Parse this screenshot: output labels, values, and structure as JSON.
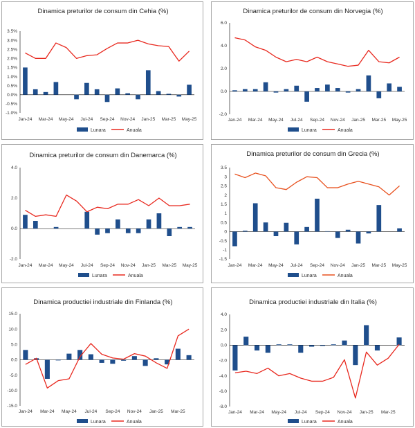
{
  "colors": {
    "bar": "#1f4e8c",
    "line_red": "#e8281e",
    "line_orange": "#e8511e"
  },
  "chart_data": [
    {
      "id": "cz",
      "type": "bar+line",
      "title": "Dinamica preturilor de consum din Cehia (%)",
      "categories": [
        "Jan-24",
        "Feb-24",
        "Mar-24",
        "Apr-24",
        "May-24",
        "Jun-24",
        "Jul-24",
        "Aug-24",
        "Sep-24",
        "Oct-24",
        "Nov-24",
        "Dec-24",
        "Jan-25",
        "Feb-25",
        "Mar-25",
        "Apr-25",
        "May-25"
      ],
      "x_tick_labels": [
        "Jan-24",
        "Mar-24",
        "May-24",
        "Jul-24",
        "Sep-24",
        "Nov-24",
        "Jan-25",
        "Mar-25",
        "May-25"
      ],
      "y_ticks": [
        "-1.0%",
        "-0.5%",
        "0.0%",
        "0.5%",
        "1.0%",
        "1.5%",
        "2.0%",
        "2.5%",
        "3.0%",
        "3.5%"
      ],
      "ylim": [
        -1.0,
        3.5
      ],
      "series": [
        {
          "name": "Lunara",
          "kind": "bar",
          "values": [
            1.5,
            0.3,
            0.15,
            0.7,
            0.0,
            -0.25,
            0.65,
            0.3,
            -0.4,
            0.35,
            0.08,
            -0.25,
            1.35,
            0.2,
            0.05,
            -0.1,
            0.55
          ]
        },
        {
          "name": "Anuala",
          "kind": "line",
          "color_key": "line_red",
          "values": [
            2.3,
            2.0,
            2.0,
            2.85,
            2.6,
            2.0,
            2.15,
            2.2,
            2.55,
            2.85,
            2.85,
            3.0,
            2.8,
            2.7,
            2.65,
            1.85,
            2.4
          ]
        }
      ]
    },
    {
      "id": "no",
      "type": "bar+line",
      "title": "Dinamica preturilor de consum din Norvegia (%)",
      "categories": [
        "Jan-24",
        "Feb-24",
        "Mar-24",
        "Apr-24",
        "May-24",
        "Jun-24",
        "Jul-24",
        "Aug-24",
        "Sep-24",
        "Oct-24",
        "Nov-24",
        "Dec-24",
        "Jan-25",
        "Feb-25",
        "Mar-25",
        "Apr-25",
        "May-25"
      ],
      "x_tick_labels": [
        "Jan-24",
        "Mar-24",
        "May-24",
        "Jul-24",
        "Sep-24",
        "Nov-24",
        "Jan-25",
        "Mar-25",
        "May-25"
      ],
      "y_ticks": [
        "-2.0",
        "0.0",
        "2.0",
        "4.0",
        "6.0"
      ],
      "ylim": [
        -2.0,
        6.0
      ],
      "series": [
        {
          "name": "Lunara",
          "kind": "bar",
          "values": [
            0.1,
            0.2,
            0.2,
            0.8,
            -0.1,
            0.2,
            0.5,
            -0.9,
            0.3,
            0.6,
            0.3,
            -0.1,
            0.2,
            1.4,
            -0.6,
            0.7,
            0.4
          ]
        },
        {
          "name": "Anuala",
          "kind": "line",
          "color_key": "line_red",
          "values": [
            4.7,
            4.5,
            3.9,
            3.6,
            3.0,
            2.6,
            2.8,
            2.6,
            3.0,
            2.6,
            2.4,
            2.2,
            2.3,
            3.6,
            2.6,
            2.5,
            3.0
          ]
        }
      ]
    },
    {
      "id": "dk",
      "type": "bar+line",
      "title": "Dinamica preturilor de consum din Danemarca (%)",
      "categories": [
        "Jan-24",
        "Feb-24",
        "Mar-24",
        "Apr-24",
        "May-24",
        "Jun-24",
        "Jul-24",
        "Aug-24",
        "Sep-24",
        "Oct-24",
        "Nov-24",
        "Dec-24",
        "Jan-25",
        "Feb-25",
        "Mar-25",
        "Apr-25",
        "May-25"
      ],
      "x_tick_labels": [
        "Jan-24",
        "Mar-24",
        "May-24",
        "Jul-24",
        "Sep-24",
        "Nov-24",
        "Jan-25",
        "Mar-25",
        "May-25"
      ],
      "y_ticks": [
        "-2.0",
        "0.0",
        "2.0",
        "4.0"
      ],
      "ylim": [
        -2.0,
        4.0
      ],
      "series": [
        {
          "name": "Lunara",
          "kind": "bar",
          "values": [
            0.9,
            0.5,
            0.0,
            0.1,
            0.0,
            0.0,
            1.1,
            -0.4,
            -0.3,
            0.6,
            -0.3,
            -0.3,
            0.6,
            1.0,
            -0.5,
            0.1,
            0.1
          ]
        },
        {
          "name": "Anuala",
          "kind": "line",
          "color_key": "line_red",
          "values": [
            1.2,
            0.8,
            0.9,
            0.8,
            2.2,
            1.8,
            1.1,
            1.4,
            1.3,
            1.6,
            1.6,
            1.9,
            1.5,
            2.0,
            1.5,
            1.5,
            1.6
          ]
        }
      ]
    },
    {
      "id": "gr",
      "type": "bar+line",
      "title": "Dinamica preturilor de consum din Grecia (%)",
      "categories": [
        "Jan-24",
        "Feb-24",
        "Mar-24",
        "Apr-24",
        "May-24",
        "Jun-24",
        "Jul-24",
        "Aug-24",
        "Sep-24",
        "Oct-24",
        "Nov-24",
        "Dec-24",
        "Jan-25",
        "Feb-25",
        "Mar-25",
        "Apr-25",
        "May-25"
      ],
      "x_tick_labels": [
        "Jan-24",
        "Mar-24",
        "May-24",
        "Jul-24",
        "Sep-24",
        "Nov-24",
        "Jan-25",
        "Mar-25",
        "May-25"
      ],
      "y_ticks": [
        "-1.5",
        "-1",
        "-0.5",
        "0",
        "0.5",
        "1",
        "1.5",
        "2",
        "2.5",
        "3",
        "3.5"
      ],
      "ylim": [
        -1.5,
        3.5
      ],
      "series": [
        {
          "name": "Lunara",
          "kind": "bar",
          "values": [
            -0.8,
            0.05,
            1.55,
            0.5,
            -0.25,
            0.48,
            -0.7,
            0.25,
            1.8,
            0.02,
            -0.35,
            0.1,
            -0.65,
            -0.1,
            1.45,
            0.0,
            0.18
          ]
        },
        {
          "name": "Anuala",
          "kind": "line",
          "color_key": "line_orange",
          "values": [
            3.15,
            2.95,
            3.2,
            3.05,
            2.4,
            2.3,
            2.7,
            3.0,
            2.95,
            2.4,
            2.4,
            2.6,
            2.75,
            2.6,
            2.45,
            2.0,
            2.5
          ]
        }
      ]
    },
    {
      "id": "fi",
      "type": "bar+line",
      "title": "Dinamica productiei industriale din Finlanda (%)",
      "categories": [
        "Jan-24",
        "Feb-24",
        "Mar-24",
        "Apr-24",
        "May-24",
        "Jun-24",
        "Jul-24",
        "Aug-24",
        "Sep-24",
        "Oct-24",
        "Nov-24",
        "Dec-24",
        "Jan-25",
        "Feb-25",
        "Mar-25",
        "Apr-25"
      ],
      "x_tick_labels": [
        "Jan-24",
        "Mar-24",
        "May-24",
        "Jul-24",
        "Sep-24",
        "Nov-24",
        "Jan-25",
        "Mar-25"
      ],
      "y_ticks": [
        "-15.0",
        "-10.0",
        "-5.0",
        "0.0",
        "5.0",
        "10.0",
        "15.0"
      ],
      "ylim": [
        -15.0,
        15.0
      ],
      "series": [
        {
          "name": "Lunara",
          "kind": "bar",
          "values": [
            3.2,
            0.5,
            -6.2,
            -0.2,
            2.0,
            3.2,
            1.8,
            -1.0,
            -1.3,
            -0.3,
            1.2,
            -2.0,
            0.5,
            -1.5,
            3.6,
            1.5
          ]
        },
        {
          "name": "Anuala",
          "kind": "line",
          "color_key": "line_red",
          "values": [
            -1.5,
            0.5,
            -9.2,
            -6.8,
            -6.2,
            1.0,
            5.3,
            1.8,
            0.6,
            0.2,
            2.0,
            1.2,
            -1.0,
            -2.8,
            7.8,
            10.0
          ]
        }
      ]
    },
    {
      "id": "it",
      "type": "bar+line",
      "title": "Dinamica productiei industriale din Italia (%)",
      "categories": [
        "Jan-24",
        "Feb-24",
        "Mar-24",
        "Apr-24",
        "May-24",
        "Jun-24",
        "Jul-24",
        "Aug-24",
        "Sep-24",
        "Oct-24",
        "Nov-24",
        "Dec-24",
        "Jan-25",
        "Feb-25",
        "Mar-25",
        "Apr-25"
      ],
      "x_tick_labels": [
        "Jan-24",
        "Mar-24",
        "May-24",
        "Jul-24",
        "Sep-24",
        "Nov-24",
        "Jan-25",
        "Mar-25"
      ],
      "y_ticks": [
        "-8.0",
        "-6.0",
        "-4.0",
        "-2.0",
        "0.0",
        "2.0",
        "4.0"
      ],
      "ylim": [
        -8.0,
        4.0
      ],
      "series": [
        {
          "name": "Lunara",
          "kind": "bar",
          "values": [
            -3.3,
            1.1,
            -0.7,
            -1.0,
            0.1,
            0.1,
            -1.0,
            -0.2,
            -0.1,
            0.1,
            0.6,
            -2.6,
            2.6,
            -0.7,
            0.0,
            1.0
          ]
        },
        {
          "name": "Anuala",
          "kind": "line",
          "color_key": "line_red",
          "values": [
            -3.6,
            -3.4,
            -3.7,
            -3.0,
            -4.0,
            -3.7,
            -4.3,
            -4.7,
            -4.7,
            -4.2,
            -1.9,
            -6.9,
            -0.9,
            -2.6,
            -1.7,
            0.1
          ]
        }
      ]
    }
  ]
}
